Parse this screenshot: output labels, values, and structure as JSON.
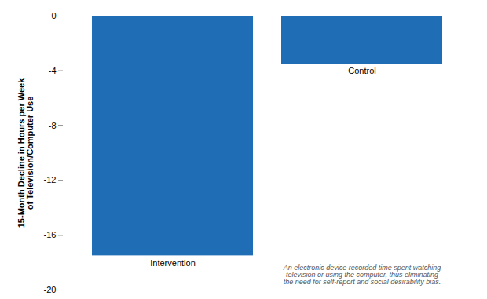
{
  "chart_data": {
    "type": "bar",
    "categories": [
      "Intervention",
      "Control"
    ],
    "values": [
      -17.5,
      -3.5
    ],
    "color": "#1f6db5",
    "ylabel": "15-Month Decline in Hours per Week\nof Television/Computer Use",
    "annotation": "An electronic device recorded time spent watching\ntelevision or using the computer, thus eliminating\nthe need for self-report and social desirability bias.",
    "ylim": [
      -20,
      0
    ],
    "yticks": [
      0,
      -4,
      -8,
      -12,
      -16,
      -20
    ],
    "grid": false,
    "tick_labels": "y"
  }
}
